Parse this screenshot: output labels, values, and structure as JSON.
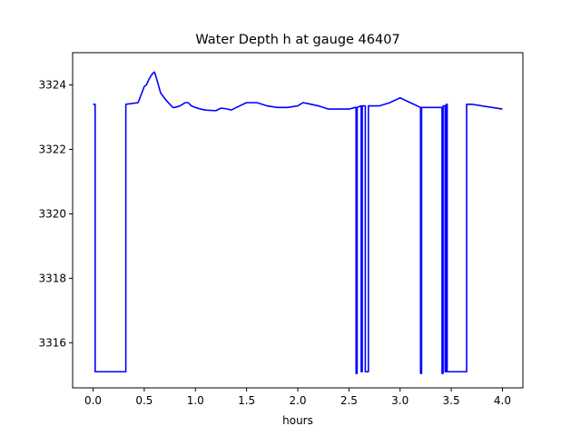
{
  "chart_data": {
    "type": "line",
    "title": "Water Depth h at gauge 46407",
    "xlabel": "hours",
    "ylabel": "",
    "xlim": [
      -0.2,
      4.2
    ],
    "ylim": [
      3314.6,
      3325.0
    ],
    "xticks": [
      0.0,
      0.5,
      1.0,
      1.5,
      2.0,
      2.5,
      3.0,
      3.5,
      4.0
    ],
    "xtick_labels": [
      "0.0",
      "0.5",
      "1.0",
      "1.5",
      "2.0",
      "2.5",
      "3.0",
      "3.5",
      "4.0"
    ],
    "yticks": [
      3316,
      3318,
      3320,
      3322,
      3324
    ],
    "ytick_labels": [
      "3316",
      "3318",
      "3320",
      "3322",
      "3324"
    ],
    "grid": false,
    "legend": "none",
    "series": [
      {
        "color": "#0000ff",
        "x": [
          0.0,
          0.02,
          0.02,
          0.32,
          0.32,
          0.44,
          0.5,
          0.52,
          0.55,
          0.58,
          0.6,
          0.62,
          0.66,
          0.72,
          0.78,
          0.8,
          0.85,
          0.9,
          0.93,
          0.96,
          1.0,
          1.05,
          1.1,
          1.2,
          1.25,
          1.3,
          1.35,
          1.4,
          1.5,
          1.6,
          1.7,
          1.8,
          1.9,
          2.0,
          2.05,
          2.1,
          2.2,
          2.3,
          2.4,
          2.5,
          2.56,
          2.57,
          2.57,
          2.58,
          2.58,
          2.62,
          2.62,
          2.63,
          2.63,
          2.66,
          2.66,
          2.69,
          2.69,
          2.8,
          2.9,
          3.0,
          3.1,
          3.2,
          3.2,
          3.21,
          3.21,
          3.22,
          3.22,
          3.3,
          3.4,
          3.41,
          3.41,
          3.42,
          3.42,
          3.44,
          3.44,
          3.45,
          3.45,
          3.46,
          3.46,
          3.65,
          3.65,
          3.7,
          3.8,
          3.9,
          4.0
        ],
        "y": [
          3323.4,
          3323.4,
          3315.1,
          3315.1,
          3323.4,
          3323.45,
          3323.95,
          3324.0,
          3324.2,
          3324.35,
          3324.4,
          3324.2,
          3323.75,
          3323.5,
          3323.3,
          3323.3,
          3323.35,
          3323.45,
          3323.45,
          3323.35,
          3323.3,
          3323.25,
          3323.22,
          3323.2,
          3323.28,
          3323.26,
          3323.22,
          3323.3,
          3323.45,
          3323.45,
          3323.35,
          3323.3,
          3323.3,
          3323.35,
          3323.45,
          3323.42,
          3323.35,
          3323.25,
          3323.25,
          3323.25,
          3323.3,
          3323.3,
          3315.05,
          3315.05,
          3323.3,
          3323.35,
          3315.1,
          3315.1,
          3323.35,
          3323.35,
          3315.1,
          3315.1,
          3323.35,
          3323.35,
          3323.45,
          3323.6,
          3323.45,
          3323.3,
          3315.05,
          3315.05,
          3323.3,
          3323.3,
          3323.3,
          3323.3,
          3323.3,
          3323.3,
          3315.05,
          3315.05,
          3323.35,
          3323.35,
          3315.1,
          3315.1,
          3323.4,
          3323.4,
          3315.1,
          3315.1,
          3323.4,
          3323.4,
          3323.35,
          3323.3,
          3323.25
        ]
      }
    ]
  }
}
